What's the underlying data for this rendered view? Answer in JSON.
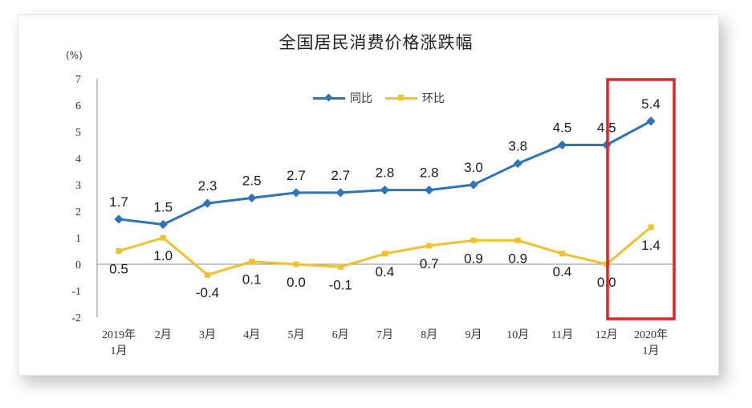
{
  "chart_data": {
    "type": "line",
    "title": "全国居民消费价格涨跌幅",
    "unit_label": "(%)",
    "categories": [
      [
        "2019年",
        "1月"
      ],
      [
        "2月"
      ],
      [
        "3月"
      ],
      [
        "4月"
      ],
      [
        "5月"
      ],
      [
        "6月"
      ],
      [
        "7月"
      ],
      [
        "8月"
      ],
      [
        "9月"
      ],
      [
        "10月"
      ],
      [
        "11月"
      ],
      [
        "12月"
      ],
      [
        "2020年",
        "1月"
      ]
    ],
    "y_ticks": [
      "7",
      "6",
      "5",
      "4",
      "3",
      "2",
      "1",
      "0",
      "-1",
      "-2"
    ],
    "ylim": [
      -2,
      7
    ],
    "grid": false,
    "legend_position": "top-center",
    "series": [
      {
        "name": "同比",
        "color": "#2e75b6",
        "marker": "diamond",
        "values": [
          1.7,
          1.5,
          2.3,
          2.5,
          2.7,
          2.7,
          2.8,
          2.8,
          3.0,
          3.8,
          4.5,
          4.5,
          5.4
        ],
        "labels": [
          "1.7",
          "1.5",
          "2.3",
          "2.5",
          "2.7",
          "2.7",
          "2.8",
          "2.8",
          "3.0",
          "3.8",
          "4.5",
          "4.5",
          "5.4"
        ]
      },
      {
        "name": "环比",
        "color": "#f2c12e",
        "marker": "square",
        "values": [
          0.5,
          1.0,
          -0.4,
          0.1,
          0.0,
          -0.1,
          0.4,
          0.7,
          0.9,
          0.9,
          0.4,
          0.0,
          1.4
        ],
        "labels": [
          "0.5",
          "1.0",
          "-0.4",
          "0.1",
          "0.0",
          "-0.1",
          "0.4",
          "0.7",
          "0.9",
          "0.9",
          "0.4",
          "0.0",
          "1.4"
        ]
      }
    ],
    "highlight": {
      "category_index": 12,
      "color": "#d9262b"
    }
  }
}
